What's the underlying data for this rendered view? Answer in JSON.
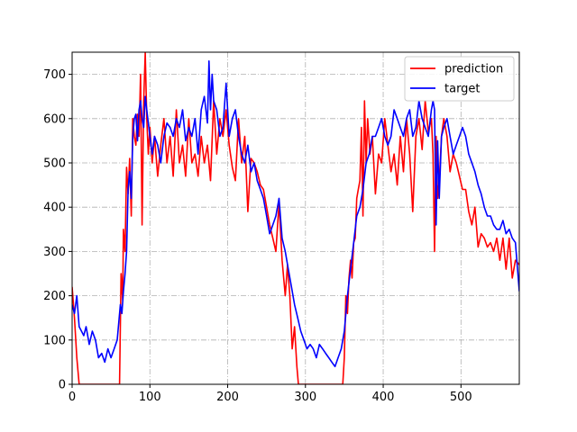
{
  "chart_data": {
    "type": "line",
    "title": "",
    "xlabel": "",
    "ylabel": "",
    "xlim": [
      0,
      575
    ],
    "ylim": [
      0,
      750
    ],
    "xticks": [
      0,
      100,
      200,
      300,
      400,
      500
    ],
    "yticks": [
      0,
      100,
      200,
      300,
      400,
      500,
      600,
      700
    ],
    "grid": true,
    "grid_style": "dashdot",
    "legend_position": "top-right",
    "series": [
      {
        "name": "prediction",
        "color": "#ff0000",
        "x": [
          0,
          3,
          6,
          9,
          12,
          16,
          20,
          25,
          30,
          35,
          40,
          45,
          50,
          55,
          58,
          61,
          63,
          65,
          66,
          68,
          70,
          72,
          74,
          76,
          78,
          80,
          82,
          84,
          86,
          88,
          90,
          92,
          94,
          96,
          98,
          100,
          103,
          106,
          110,
          114,
          118,
          122,
          126,
          130,
          134,
          138,
          142,
          146,
          150,
          154,
          158,
          162,
          166,
          170,
          174,
          178,
          182,
          186,
          190,
          194,
          198,
          202,
          206,
          210,
          214,
          218,
          222,
          226,
          230,
          234,
          238,
          242,
          246,
          250,
          254,
          258,
          262,
          266,
          270,
          274,
          277,
          280,
          283,
          286,
          289,
          291,
          293,
          296,
          300,
          305,
          310,
          315,
          320,
          325,
          330,
          335,
          340,
          345,
          348,
          350,
          352,
          354,
          356,
          358,
          360,
          362,
          364,
          366,
          368,
          370,
          372,
          374,
          376,
          378,
          380,
          383,
          386,
          390,
          394,
          398,
          402,
          406,
          410,
          414,
          418,
          422,
          426,
          430,
          434,
          438,
          442,
          446,
          450,
          454,
          458,
          462,
          464,
          466,
          468,
          470,
          472,
          475,
          478,
          482,
          486,
          490,
          494,
          498,
          502,
          506,
          510,
          514,
          518,
          522,
          526,
          530,
          534,
          538,
          542,
          546,
          550,
          554,
          558,
          562,
          566,
          570,
          575
        ],
        "y": [
          220,
          150,
          60,
          0,
          0,
          0,
          0,
          0,
          0,
          0,
          0,
          0,
          0,
          0,
          0,
          0,
          250,
          190,
          350,
          300,
          490,
          430,
          510,
          380,
          600,
          560,
          540,
          610,
          560,
          700,
          360,
          640,
          750,
          600,
          520,
          580,
          500,
          560,
          470,
          540,
          600,
          500,
          560,
          470,
          620,
          500,
          540,
          470,
          600,
          500,
          520,
          470,
          560,
          500,
          540,
          460,
          640,
          520,
          600,
          560,
          620,
          540,
          490,
          460,
          600,
          500,
          560,
          390,
          510,
          500,
          480,
          450,
          440,
          400,
          360,
          330,
          300,
          410,
          280,
          200,
          270,
          200,
          80,
          130,
          40,
          0,
          0,
          0,
          0,
          0,
          0,
          0,
          0,
          0,
          0,
          0,
          0,
          0,
          0,
          60,
          200,
          160,
          240,
          280,
          240,
          320,
          330,
          420,
          440,
          460,
          580,
          380,
          640,
          500,
          600,
          520,
          560,
          430,
          520,
          500,
          600,
          540,
          480,
          520,
          450,
          560,
          480,
          600,
          520,
          390,
          560,
          600,
          530,
          640,
          570,
          600,
          520,
          300,
          560,
          420,
          460,
          560,
          600,
          560,
          480,
          520,
          500,
          470,
          440,
          440,
          390,
          360,
          400,
          310,
          340,
          330,
          310,
          320,
          300,
          330,
          280,
          330,
          260,
          330,
          240,
          280,
          270
        ]
      },
      {
        "name": "target",
        "color": "#0000ff",
        "x": [
          0,
          3,
          6,
          9,
          12,
          15,
          18,
          22,
          26,
          30,
          34,
          38,
          42,
          46,
          50,
          54,
          58,
          62,
          64,
          66,
          68,
          70,
          72,
          74,
          76,
          78,
          80,
          82,
          84,
          86,
          88,
          90,
          92,
          94,
          96,
          98,
          100,
          103,
          106,
          110,
          114,
          118,
          122,
          126,
          130,
          134,
          138,
          142,
          146,
          150,
          154,
          158,
          162,
          166,
          170,
          174,
          176,
          178,
          180,
          182,
          186,
          190,
          194,
          198,
          202,
          206,
          210,
          214,
          218,
          222,
          226,
          230,
          234,
          238,
          242,
          246,
          250,
          254,
          258,
          262,
          266,
          270,
          274,
          278,
          282,
          286,
          290,
          294,
          298,
          302,
          306,
          310,
          314,
          318,
          322,
          326,
          330,
          334,
          338,
          342,
          346,
          350,
          354,
          358,
          362,
          366,
          370,
          374,
          378,
          382,
          386,
          390,
          394,
          398,
          402,
          406,
          410,
          414,
          418,
          422,
          426,
          430,
          434,
          438,
          442,
          446,
          450,
          454,
          458,
          462,
          464,
          466,
          468,
          470,
          472,
          475,
          478,
          482,
          486,
          490,
          494,
          498,
          502,
          506,
          510,
          514,
          518,
          522,
          526,
          530,
          534,
          538,
          542,
          546,
          550,
          554,
          558,
          562,
          566,
          570,
          575
        ],
        "y": [
          180,
          160,
          200,
          130,
          120,
          110,
          130,
          90,
          120,
          100,
          60,
          70,
          50,
          80,
          60,
          80,
          100,
          180,
          160,
          210,
          250,
          300,
          440,
          480,
          420,
          560,
          600,
          610,
          550,
          620,
          640,
          600,
          580,
          650,
          620,
          590,
          560,
          520,
          560,
          540,
          500,
          560,
          590,
          580,
          560,
          600,
          580,
          620,
          550,
          580,
          560,
          600,
          520,
          620,
          650,
          590,
          730,
          620,
          700,
          640,
          620,
          560,
          580,
          680,
          560,
          600,
          620,
          560,
          520,
          500,
          540,
          480,
          500,
          460,
          440,
          420,
          380,
          340,
          360,
          380,
          420,
          330,
          300,
          260,
          220,
          180,
          150,
          120,
          100,
          80,
          90,
          80,
          60,
          90,
          80,
          70,
          60,
          50,
          40,
          60,
          80,
          120,
          200,
          260,
          320,
          380,
          400,
          440,
          500,
          520,
          560,
          560,
          580,
          600,
          560,
          540,
          560,
          620,
          600,
          580,
          560,
          600,
          620,
          560,
          580,
          640,
          600,
          580,
          560,
          620,
          640,
          620,
          360,
          550,
          420,
          560,
          580,
          600,
          560,
          520,
          540,
          560,
          580,
          560,
          520,
          500,
          480,
          450,
          430,
          400,
          380,
          380,
          360,
          350,
          350,
          370,
          340,
          350,
          330,
          320,
          210
        ]
      }
    ]
  }
}
